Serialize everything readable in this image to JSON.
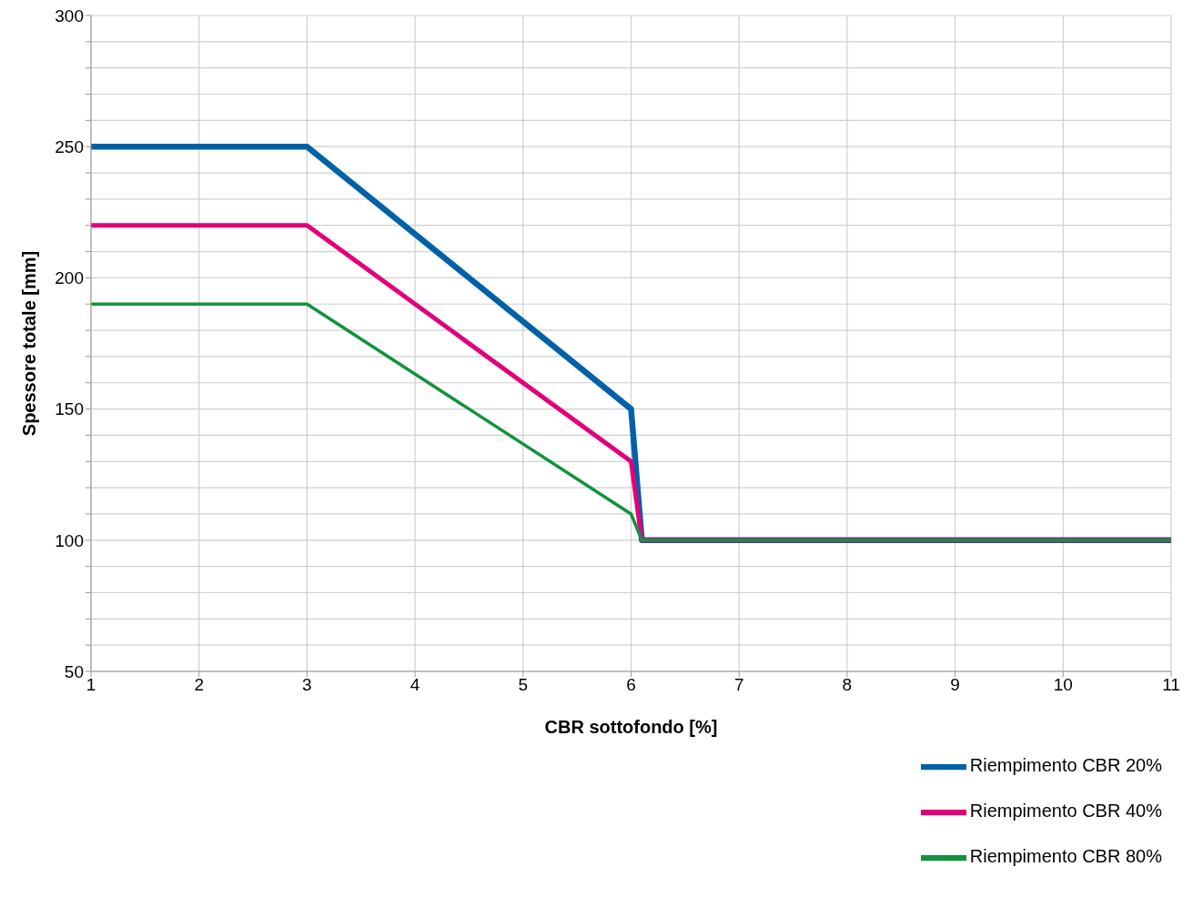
{
  "chart_data": {
    "type": "line",
    "xlabel": "CBR sottofondo [%]",
    "ylabel": "Spessore totale [mm]",
    "x": [
      1,
      3,
      6,
      6.1,
      11
    ],
    "series": [
      {
        "name": "Riempimento CBR 20%",
        "color": "#0061a8",
        "values": [
          250,
          250,
          150,
          100,
          100
        ]
      },
      {
        "name": "Riempimento CBR 40%",
        "color": "#e2007a",
        "values": [
          220,
          220,
          130,
          100,
          100
        ]
      },
      {
        "name": "Riempimento CBR 80%",
        "color": "#12923e",
        "values": [
          190,
          190,
          110,
          100,
          100
        ]
      }
    ],
    "xlim": [
      1,
      11
    ],
    "xticks": [
      1,
      2,
      3,
      4,
      5,
      6,
      7,
      8,
      9,
      10,
      11
    ],
    "ylim": [
      50,
      300
    ],
    "yticks": [
      50,
      {
        "value": 60,
        "label": null
      },
      {
        "value": 70,
        "label": null
      },
      {
        "value": 80,
        "label": null
      },
      {
        "value": 90,
        "label": null
      },
      100,
      {
        "value": 110,
        "label": null
      },
      {
        "value": 120,
        "label": null
      },
      {
        "value": 130,
        "label": null
      },
      {
        "value": 140,
        "label": null
      },
      150,
      {
        "value": 160,
        "label": null
      },
      {
        "value": 170,
        "label": null
      },
      {
        "value": 180,
        "label": null
      },
      {
        "value": 190,
        "label": null
      },
      200,
      {
        "value": 210,
        "label": null
      },
      {
        "value": 220,
        "label": null
      },
      {
        "value": 230,
        "label": null
      },
      {
        "value": 240,
        "label": null
      },
      250,
      {
        "value": 260,
        "label": null
      },
      {
        "value": 270,
        "label": null
      },
      {
        "value": 280,
        "label": null
      },
      {
        "value": 290,
        "label": null
      },
      300
    ],
    "grid": true,
    "legend": "bottom right",
    "marker": "none",
    "line_style": "solid"
  }
}
